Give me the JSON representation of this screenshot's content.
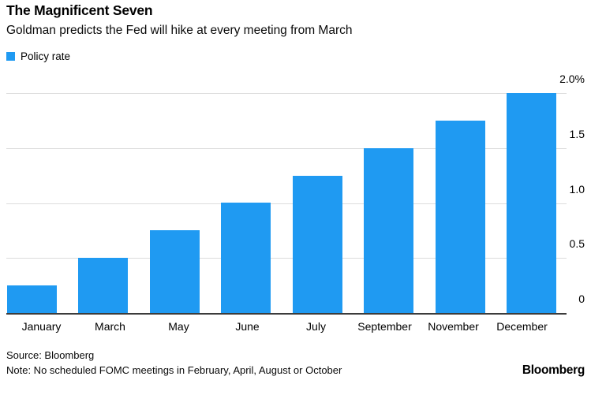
{
  "header": {
    "title": "The Magnificent Seven",
    "subtitle": "Goldman predicts the Fed will hike at every meeting from March"
  },
  "legend": {
    "label": "Policy rate"
  },
  "footer": {
    "source": "Source: Bloomberg",
    "note": "Note: No scheduled FOMC meetings in February, April, August or October",
    "brand": "Bloomberg"
  },
  "colors": {
    "bar": "#1f9af2",
    "gridline": "#dcdcdc",
    "baseline": "#3c3c3c",
    "text": "#000000"
  },
  "chart_data": {
    "type": "bar",
    "title": "The Magnificent Seven",
    "subtitle": "Goldman predicts the Fed will hike at every meeting from March",
    "series_name": "Policy rate",
    "categories": [
      "January",
      "March",
      "May",
      "June",
      "July",
      "September",
      "November",
      "December"
    ],
    "values": [
      0.25,
      0.5,
      0.75,
      1.0,
      1.25,
      1.5,
      1.75,
      2.0
    ],
    "unit": "%",
    "ylim": [
      0,
      2.0
    ],
    "yticks": [
      0,
      0.5,
      1.0,
      1.5,
      2.0
    ],
    "ytick_labels": [
      "0",
      "0.5",
      "1.0",
      "1.5",
      "2.0%"
    ],
    "grid": true,
    "legend_position": "top-left",
    "axis_side": "right"
  }
}
